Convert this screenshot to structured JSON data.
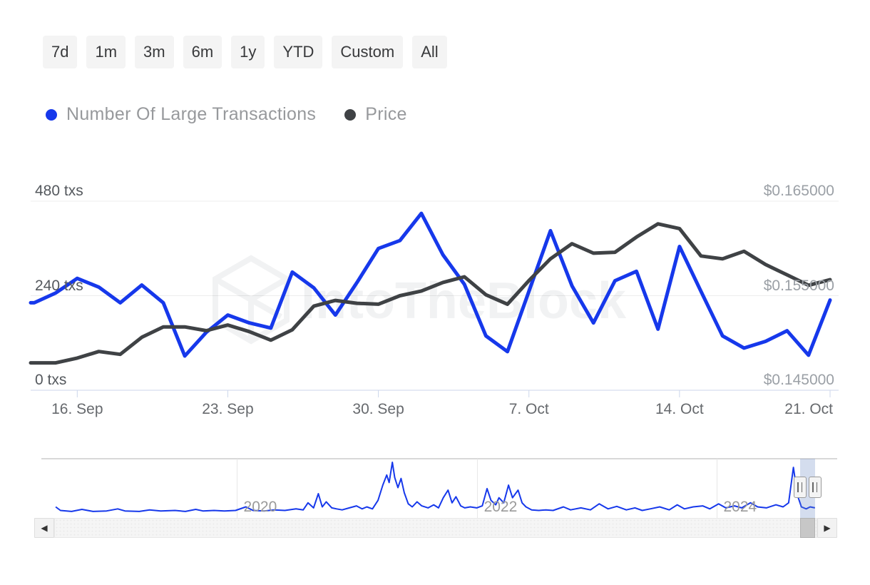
{
  "toolbar": {
    "ranges": [
      "7d",
      "1m",
      "3m",
      "6m",
      "1y",
      "YTD",
      "Custom",
      "All"
    ]
  },
  "legend": [
    {
      "label": "Number Of Large Transactions",
      "color": "#1638EB"
    },
    {
      "label": "Price",
      "color": "#3F4245"
    }
  ],
  "watermark": {
    "text": "IntoTheBlock"
  },
  "colors": {
    "series_transactions": "#1638EB",
    "series_price": "#3F4245",
    "gridline": "#ececec",
    "axis_line": "#ccd6eb",
    "navigator_outline": "#cccccc",
    "navigator_gridline": "#e7e7e7",
    "selection_mask": "rgba(102,133,194,0.28)"
  },
  "chart_data": {
    "type": "line",
    "title": "",
    "dates": [
      "14 Sep",
      "15 Sep",
      "16 Sep",
      "17 Sep",
      "18 Sep",
      "19 Sep",
      "20 Sep",
      "21 Sep",
      "22 Sep",
      "23 Sep",
      "24 Sep",
      "25 Sep",
      "26 Sep",
      "27 Sep",
      "28 Sep",
      "29 Sep",
      "30 Sep",
      "1 Oct",
      "2 Oct",
      "3 Oct",
      "4 Oct",
      "5 Oct",
      "6 Oct",
      "7 Oct",
      "8 Oct",
      "9 Oct",
      "10 Oct",
      "11 Oct",
      "12 Oct",
      "13 Oct",
      "14 Oct",
      "15 Oct",
      "16 Oct",
      "17 Oct",
      "18 Oct",
      "19 Oct",
      "20 Oct",
      "21 Oct"
    ],
    "series": [
      {
        "name": "Number Of Large Transactions",
        "axis": "left",
        "unit": "txs",
        "color": "#1638EB",
        "values": [
          222,
          247,
          284,
          262,
          222,
          267,
          222,
          87,
          147,
          191,
          171,
          158,
          300,
          260,
          191,
          273,
          360,
          380,
          449,
          344,
          269,
          138,
          98,
          251,
          405,
          265,
          171,
          278,
          302,
          155,
          365,
          251,
          138,
          107,
          124,
          151,
          89,
          229
        ]
      },
      {
        "name": "Price",
        "axis": "right",
        "unit": "$",
        "color": "#3F4245",
        "values": [
          0.1479,
          0.1479,
          0.1484,
          0.1491,
          0.1488,
          0.1506,
          0.1517,
          0.1517,
          0.1513,
          0.1519,
          0.1512,
          0.1503,
          0.1514,
          0.1539,
          0.1545,
          0.1542,
          0.1541,
          0.155,
          0.1555,
          0.1564,
          0.157,
          0.1551,
          0.1541,
          0.1566,
          0.1589,
          0.1605,
          0.1595,
          0.1596,
          0.1612,
          0.1626,
          0.1621,
          0.1592,
          0.1589,
          0.1597,
          0.1583,
          0.1572,
          0.1561,
          0.1567
        ]
      }
    ],
    "left_axis": {
      "range": [
        0,
        480
      ],
      "ticks": [
        {
          "value": 480,
          "label": "480 txs"
        },
        {
          "value": 240,
          "label": "240 txs"
        },
        {
          "value": 0,
          "label": "0 txs"
        }
      ]
    },
    "right_axis": {
      "range": [
        0.145,
        0.165
      ],
      "ticks": [
        {
          "value": 0.165,
          "label": "$0.165000"
        },
        {
          "value": 0.155,
          "label": "$0.155000"
        },
        {
          "value": 0.145,
          "label": "$0.145000"
        }
      ]
    },
    "x_ticks": [
      {
        "index": 2,
        "label": "16. Sep"
      },
      {
        "index": 9,
        "label": "23. Sep"
      },
      {
        "index": 16,
        "label": "30. Sep"
      },
      {
        "index": 23,
        "label": "7. Oct"
      },
      {
        "index": 30,
        "label": "14. Oct"
      },
      {
        "index": 37,
        "label": "21. Oct",
        "align": "right"
      }
    ],
    "navigator": {
      "year_ticks": [
        {
          "x": 0.246,
          "label": "2020"
        },
        {
          "x": 0.548,
          "label": "2022"
        },
        {
          "x": 0.849,
          "label": "2024"
        }
      ],
      "selection": {
        "from": 0.9534,
        "to": 0.9722
      },
      "points": [
        [
          0.018,
          0.12
        ],
        [
          0.024,
          0.05
        ],
        [
          0.038,
          0.03
        ],
        [
          0.051,
          0.07
        ],
        [
          0.065,
          0.03
        ],
        [
          0.082,
          0.04
        ],
        [
          0.096,
          0.08
        ],
        [
          0.105,
          0.04
        ],
        [
          0.123,
          0.03
        ],
        [
          0.136,
          0.06
        ],
        [
          0.15,
          0.04
        ],
        [
          0.168,
          0.05
        ],
        [
          0.181,
          0.03
        ],
        [
          0.194,
          0.07
        ],
        [
          0.203,
          0.04
        ],
        [
          0.217,
          0.05
        ],
        [
          0.23,
          0.04
        ],
        [
          0.244,
          0.05
        ],
        [
          0.257,
          0.12
        ],
        [
          0.266,
          0.05
        ],
        [
          0.28,
          0.04
        ],
        [
          0.293,
          0.06
        ],
        [
          0.306,
          0.05
        ],
        [
          0.32,
          0.08
        ],
        [
          0.329,
          0.06
        ],
        [
          0.335,
          0.2
        ],
        [
          0.342,
          0.1
        ],
        [
          0.348,
          0.38
        ],
        [
          0.353,
          0.12
        ],
        [
          0.358,
          0.22
        ],
        [
          0.365,
          0.1
        ],
        [
          0.371,
          0.08
        ],
        [
          0.378,
          0.06
        ],
        [
          0.387,
          0.1
        ],
        [
          0.396,
          0.14
        ],
        [
          0.403,
          0.08
        ],
        [
          0.409,
          0.12
        ],
        [
          0.416,
          0.08
        ],
        [
          0.423,
          0.25
        ],
        [
          0.429,
          0.55
        ],
        [
          0.434,
          0.75
        ],
        [
          0.437,
          0.6
        ],
        [
          0.441,
          1.0
        ],
        [
          0.444,
          0.7
        ],
        [
          0.448,
          0.5
        ],
        [
          0.452,
          0.68
        ],
        [
          0.456,
          0.4
        ],
        [
          0.461,
          0.18
        ],
        [
          0.466,
          0.12
        ],
        [
          0.472,
          0.22
        ],
        [
          0.478,
          0.14
        ],
        [
          0.486,
          0.1
        ],
        [
          0.493,
          0.16
        ],
        [
          0.499,
          0.1
        ],
        [
          0.505,
          0.3
        ],
        [
          0.511,
          0.45
        ],
        [
          0.516,
          0.2
        ],
        [
          0.521,
          0.32
        ],
        [
          0.527,
          0.14
        ],
        [
          0.532,
          0.1
        ],
        [
          0.539,
          0.12
        ],
        [
          0.547,
          0.1
        ],
        [
          0.554,
          0.14
        ],
        [
          0.56,
          0.48
        ],
        [
          0.565,
          0.25
        ],
        [
          0.571,
          0.16
        ],
        [
          0.575,
          0.3
        ],
        [
          0.581,
          0.2
        ],
        [
          0.587,
          0.55
        ],
        [
          0.592,
          0.3
        ],
        [
          0.599,
          0.45
        ],
        [
          0.604,
          0.2
        ],
        [
          0.609,
          0.12
        ],
        [
          0.616,
          0.06
        ],
        [
          0.625,
          0.05
        ],
        [
          0.634,
          0.06
        ],
        [
          0.643,
          0.05
        ],
        [
          0.656,
          0.12
        ],
        [
          0.665,
          0.06
        ],
        [
          0.678,
          0.1
        ],
        [
          0.69,
          0.06
        ],
        [
          0.701,
          0.18
        ],
        [
          0.712,
          0.08
        ],
        [
          0.723,
          0.13
        ],
        [
          0.735,
          0.06
        ],
        [
          0.746,
          0.1
        ],
        [
          0.755,
          0.05
        ],
        [
          0.765,
          0.08
        ],
        [
          0.777,
          0.12
        ],
        [
          0.789,
          0.06
        ],
        [
          0.799,
          0.16
        ],
        [
          0.808,
          0.08
        ],
        [
          0.819,
          0.12
        ],
        [
          0.831,
          0.14
        ],
        [
          0.84,
          0.08
        ],
        [
          0.851,
          0.18
        ],
        [
          0.86,
          0.1
        ],
        [
          0.871,
          0.14
        ],
        [
          0.88,
          0.1
        ],
        [
          0.891,
          0.2
        ],
        [
          0.9,
          0.12
        ],
        [
          0.911,
          0.1
        ],
        [
          0.923,
          0.16
        ],
        [
          0.932,
          0.12
        ],
        [
          0.939,
          0.2
        ],
        [
          0.945,
          0.9
        ],
        [
          0.95,
          0.35
        ],
        [
          0.955,
          0.12
        ],
        [
          0.961,
          0.08
        ],
        [
          0.966,
          0.12
        ],
        [
          0.972,
          0.1
        ]
      ]
    }
  },
  "scrollbar": {
    "left_arrow": "◀",
    "right_arrow": "▶"
  }
}
